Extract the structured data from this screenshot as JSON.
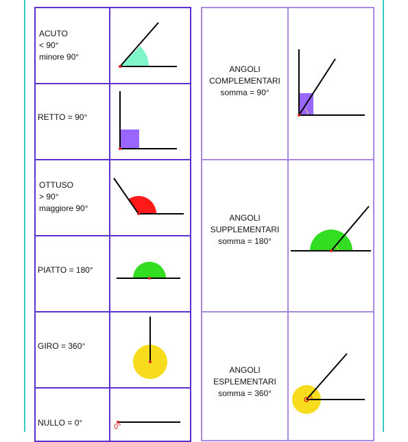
{
  "angle_types": [
    {
      "label": "ACUTO\n< 90°\nminore 90°",
      "shape": "acute"
    },
    {
      "label": "RETTO   = 90°",
      "shape": "right"
    },
    {
      "label": "OTTUSO\n> 90°\nmaggiore 90°",
      "shape": "obtuse"
    },
    {
      "label": "PIATTO  = 180°",
      "shape": "straight"
    },
    {
      "label": "GIRO  = 360°",
      "shape": "full"
    },
    {
      "label": "NULLO  = 0°",
      "shape": "null",
      "mark": "0°"
    }
  ],
  "angle_pairs": [
    {
      "label": "ANGOLI\nCOMPLEMENTARI\nsomma = 90°",
      "shape": "complementary"
    },
    {
      "label": "ANGOLI\nSUPPLEMENTARI\nsomma = 180°",
      "shape": "supplementary"
    },
    {
      "label": "ANGOLI\nESPLEMENTARI\nsomma = 360°",
      "shape": "explementary"
    }
  ],
  "colors": {
    "teal_border": "#35c9c3",
    "left_grid": "#5b2fd0",
    "right_grid": "#a888de",
    "acute_fill": "#7ff5c9",
    "right_fill": "#9966ff",
    "obtuse_fill": "#ff1a1a",
    "straight_fill": "#33dd22",
    "full_fill": "#f7dc1e",
    "vertex_mark": "#e02020"
  }
}
